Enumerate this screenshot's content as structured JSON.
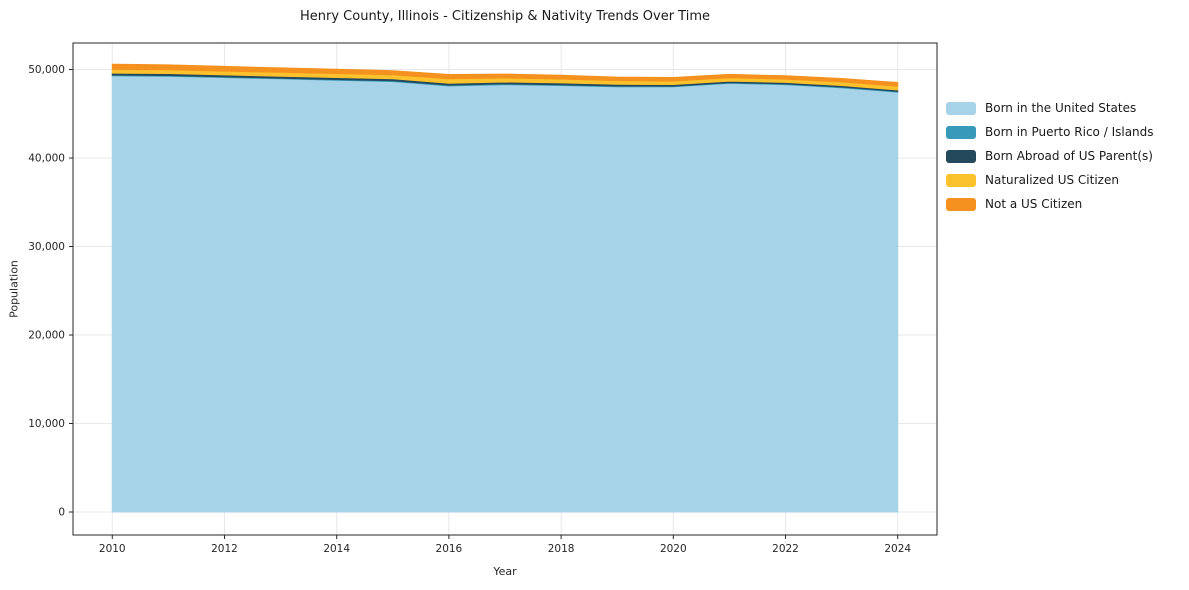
{
  "chart_data": {
    "type": "area",
    "stacked": true,
    "title": "Henry County, Illinois - Citizenship & Nativity Trends Over Time",
    "xlabel": "Year",
    "ylabel": "Population",
    "x": [
      2010,
      2011,
      2012,
      2013,
      2014,
      2015,
      2016,
      2017,
      2018,
      2019,
      2020,
      2021,
      2022,
      2023,
      2024
    ],
    "xlim": [
      2009.3,
      2024.7
    ],
    "ylim": [
      -2600,
      53000
    ],
    "xticks": [
      2010,
      2012,
      2014,
      2016,
      2018,
      2020,
      2022,
      2024
    ],
    "xtick_labels": [
      "2010",
      "2012",
      "2014",
      "2016",
      "2018",
      "2020",
      "2022",
      "2024"
    ],
    "yticks": [
      0,
      10000,
      20000,
      30000,
      40000,
      50000
    ],
    "ytick_labels": [
      "0",
      "10,000",
      "20,000",
      "30,000",
      "40,000",
      "50,000"
    ],
    "grid": true,
    "legend_position": "right",
    "series": [
      {
        "name": "Born in the United States",
        "color": "#a6d3e8",
        "values": [
          49300,
          49250,
          49100,
          48950,
          48800,
          48650,
          48150,
          48300,
          48200,
          48050,
          48050,
          48450,
          48300,
          47950,
          47450
        ]
      },
      {
        "name": "Born in Puerto Rico / Islands",
        "color": "#3899b8",
        "values": [
          80,
          80,
          80,
          80,
          80,
          80,
          90,
          90,
          90,
          90,
          80,
          80,
          80,
          80,
          80
        ]
      },
      {
        "name": "Born Abroad of US Parent(s)",
        "color": "#24485c",
        "values": [
          220,
          220,
          220,
          220,
          220,
          220,
          210,
          200,
          200,
          190,
          180,
          170,
          170,
          170,
          160
        ]
      },
      {
        "name": "Naturalized US Citizen",
        "color": "#fcc22d",
        "values": [
          420,
          420,
          430,
          440,
          450,
          460,
          520,
          470,
          440,
          420,
          400,
          380,
          370,
          400,
          430
        ]
      },
      {
        "name": "Not a US Citizen",
        "color": "#f5911e",
        "values": [
          580,
          550,
          520,
          500,
          480,
          460,
          470,
          430,
          420,
          400,
          390,
          370,
          370,
          390,
          420
        ]
      }
    ]
  }
}
